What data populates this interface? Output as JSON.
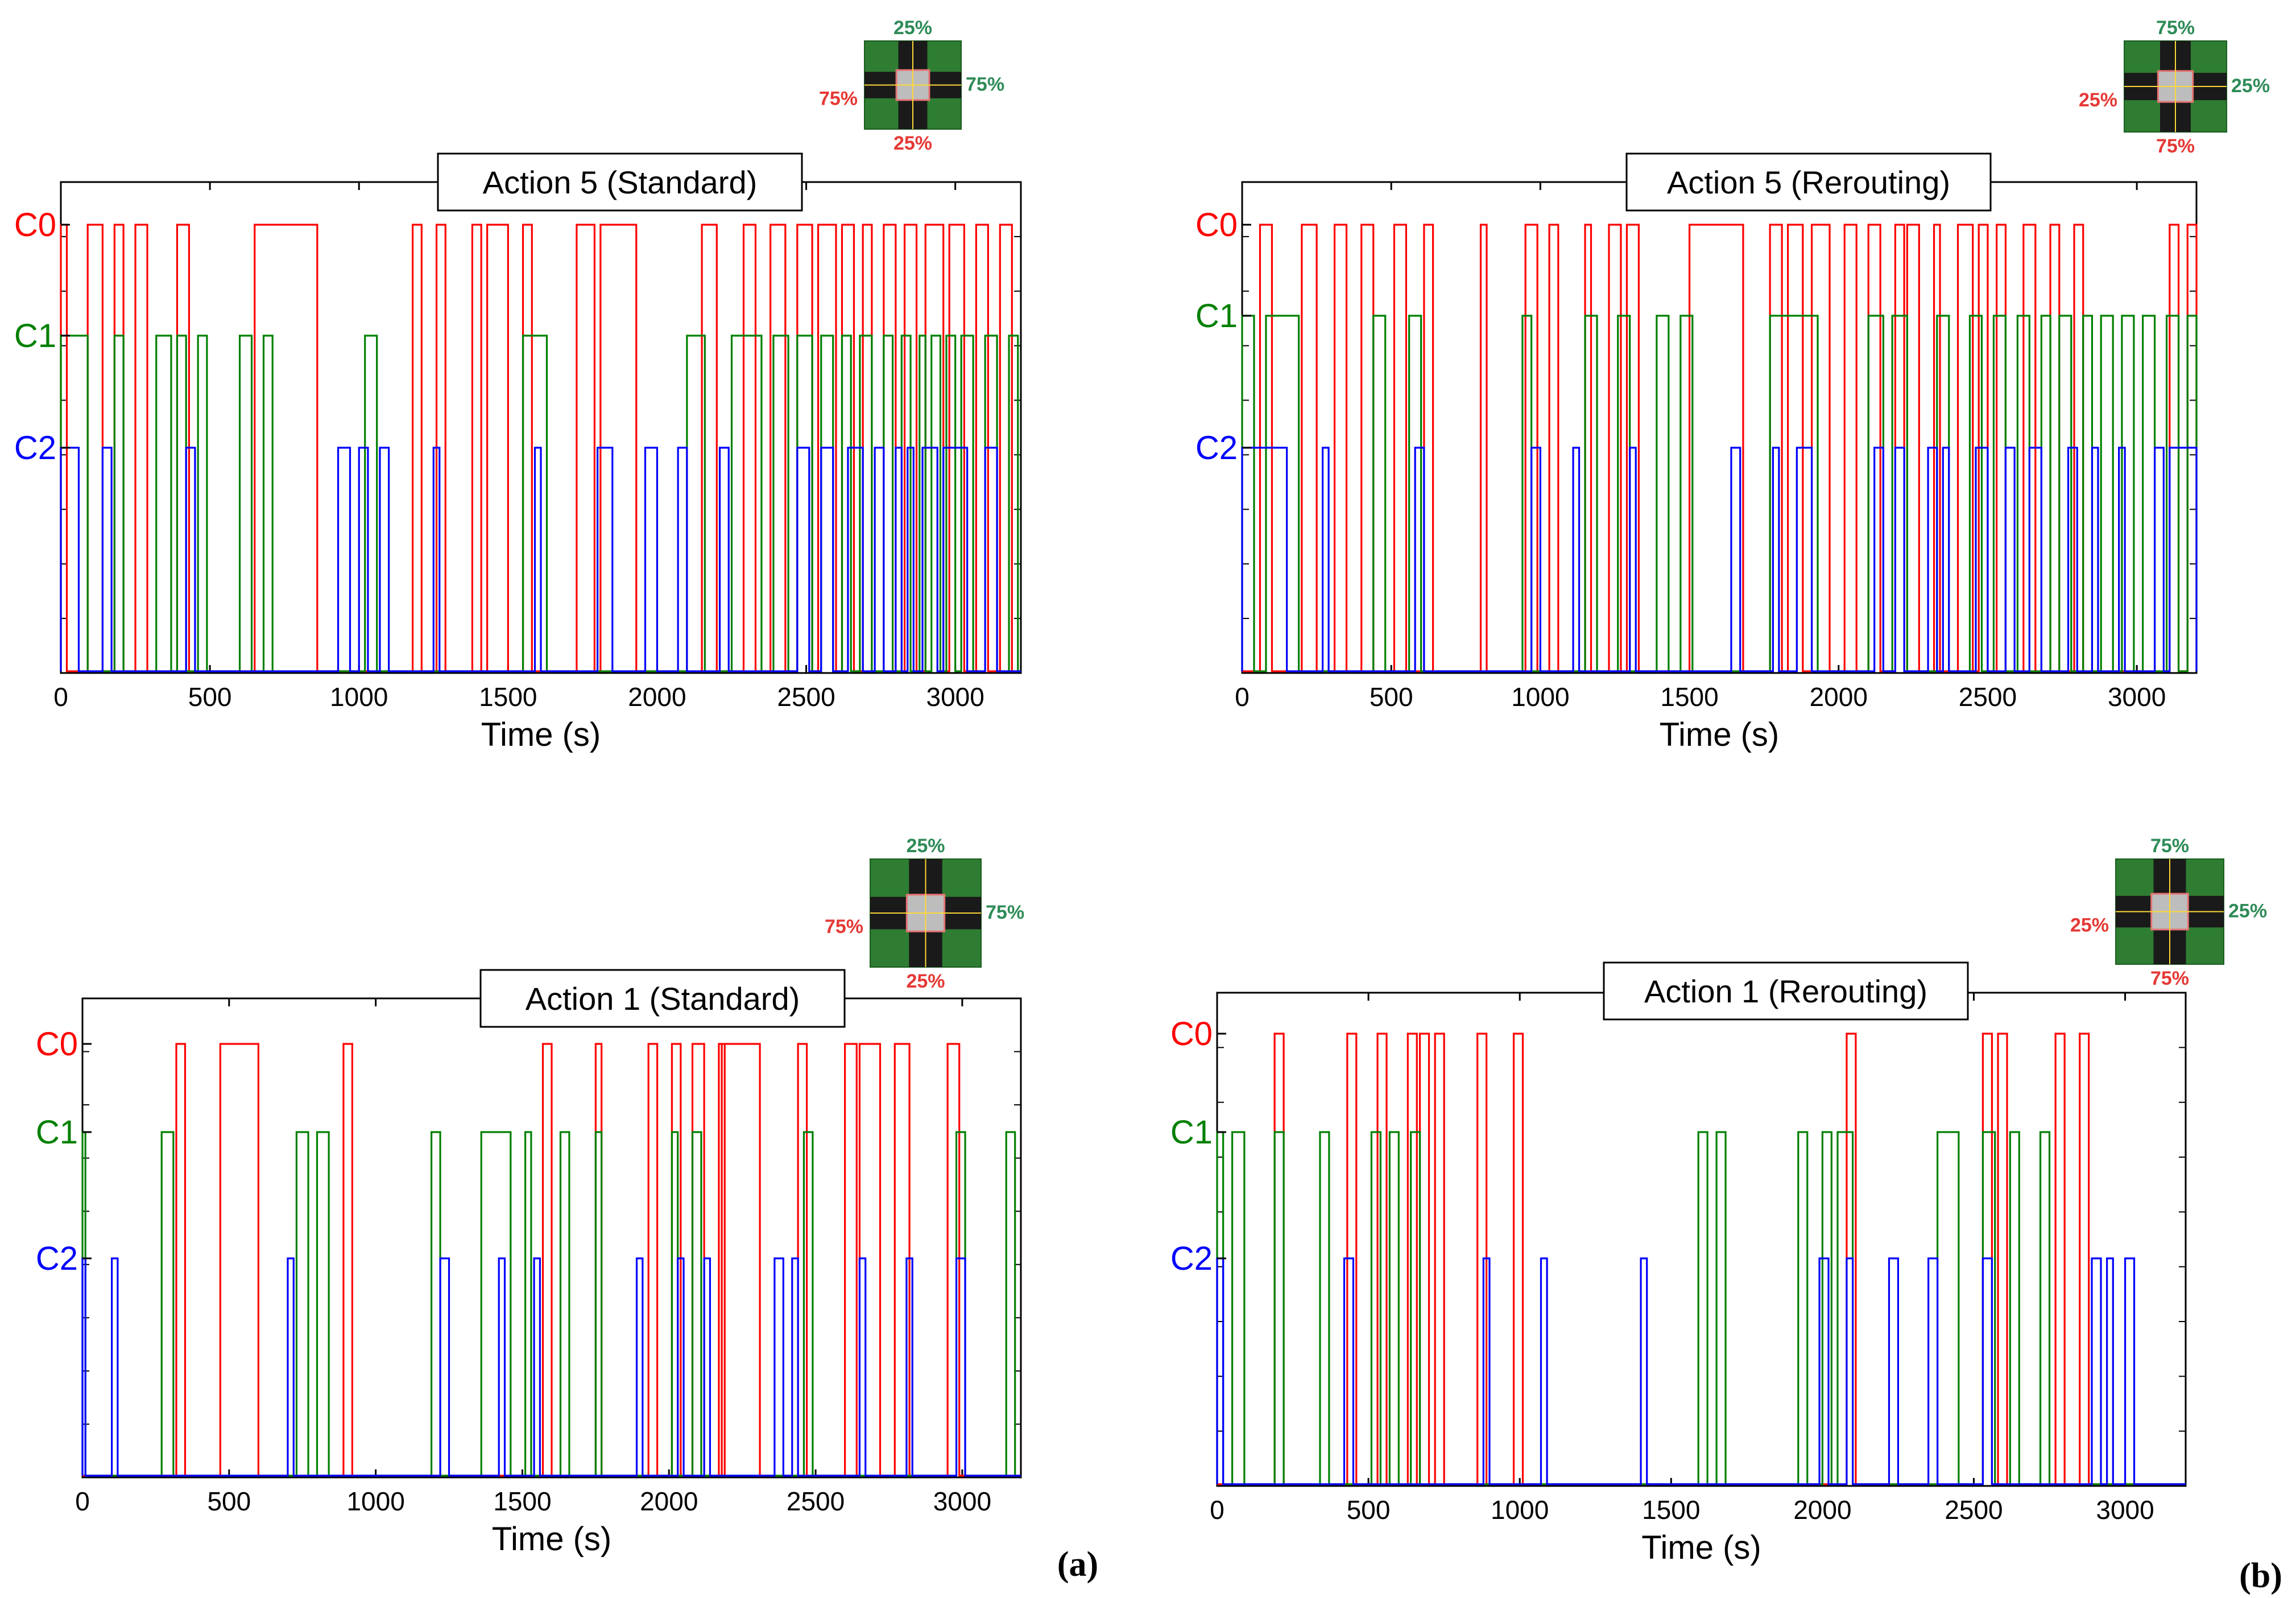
{
  "figure": {
    "panel_letters": [
      "(a)",
      "(b)"
    ]
  },
  "colors": {
    "C0": "#ff0000",
    "C1": "#008000",
    "C2": "#0000ff",
    "axis": "#000000"
  },
  "chart_data": [
    {
      "type": "line",
      "title": "Action 5 (Standard)",
      "xlabel": "Time (s)",
      "xlim": [
        0,
        3220
      ],
      "xticks": [
        0,
        500,
        1000,
        1500,
        2000,
        2500,
        3000
      ],
      "ylabels": [
        "C0",
        "C1",
        "C2"
      ],
      "inset": {
        "north": "25%",
        "east": "75%",
        "west": "75%",
        "south": "25%"
      },
      "series": [
        {
          "name": "C0",
          "color": "#ff0000",
          "intervals": [
            [
              0,
              20
            ],
            [
              90,
              140
            ],
            [
              180,
              210
            ],
            [
              250,
              290
            ],
            [
              390,
              430
            ],
            [
              650,
              860
            ],
            [
              1180,
              1210
            ],
            [
              1260,
              1290
            ],
            [
              1380,
              1410
            ],
            [
              1430,
              1500
            ],
            [
              1550,
              1580
            ],
            [
              1730,
              1790
            ],
            [
              1810,
              1930
            ],
            [
              2150,
              2200
            ],
            [
              2290,
              2330
            ],
            [
              2380,
              2430
            ],
            [
              2470,
              2520
            ],
            [
              2540,
              2600
            ],
            [
              2620,
              2660
            ],
            [
              2690,
              2720
            ],
            [
              2760,
              2800
            ],
            [
              2830,
              2870
            ],
            [
              2900,
              2960
            ],
            [
              2980,
              3030
            ],
            [
              3070,
              3110
            ],
            [
              3150,
              3190
            ]
          ]
        },
        {
          "name": "C1",
          "color": "#008000",
          "intervals": [
            [
              0,
              90
            ],
            [
              180,
              210
            ],
            [
              320,
              370
            ],
            [
              390,
              420
            ],
            [
              460,
              490
            ],
            [
              600,
              640
            ],
            [
              680,
              710
            ],
            [
              1020,
              1060
            ],
            [
              1550,
              1630
            ],
            [
              2100,
              2160
            ],
            [
              2250,
              2350
            ],
            [
              2390,
              2440
            ],
            [
              2470,
              2520
            ],
            [
              2550,
              2590
            ],
            [
              2620,
              2650
            ],
            [
              2680,
              2720
            ],
            [
              2760,
              2790
            ],
            [
              2820,
              2850
            ],
            [
              2880,
              2900
            ],
            [
              2920,
              2950
            ],
            [
              2970,
              3000
            ],
            [
              3020,
              3060
            ],
            [
              3100,
              3140
            ],
            [
              3180,
              3210
            ]
          ]
        },
        {
          "name": "C2",
          "color": "#0000ff",
          "intervals": [
            [
              0,
              60
            ],
            [
              140,
              170
            ],
            [
              420,
              450
            ],
            [
              930,
              970
            ],
            [
              1000,
              1030
            ],
            [
              1070,
              1100
            ],
            [
              1250,
              1270
            ],
            [
              1590,
              1610
            ],
            [
              1800,
              1850
            ],
            [
              1960,
              2000
            ],
            [
              2070,
              2100
            ],
            [
              2210,
              2240
            ],
            [
              2470,
              2510
            ],
            [
              2550,
              2590
            ],
            [
              2640,
              2690
            ],
            [
              2730,
              2760
            ],
            [
              2800,
              2820
            ],
            [
              2840,
              2860
            ],
            [
              2890,
              2940
            ],
            [
              2960,
              3040
            ],
            [
              3100,
              3140
            ]
          ]
        }
      ]
    },
    {
      "type": "line",
      "title": "Action 5 (Rerouting)",
      "xlabel": "Time (s)",
      "xlim": [
        0,
        3200
      ],
      "xticks": [
        0,
        500,
        1000,
        1500,
        2000,
        2500,
        3000
      ],
      "ylabels": [
        "C0",
        "C1",
        "C2"
      ],
      "inset": {
        "north": "75%",
        "east": "25%",
        "west": "25%",
        "south": "75%"
      },
      "series": [
        {
          "name": "C0",
          "color": "#ff0000",
          "intervals": [
            [
              60,
              100
            ],
            [
              200,
              250
            ],
            [
              310,
              350
            ],
            [
              400,
              440
            ],
            [
              510,
              550
            ],
            [
              610,
              640
            ],
            [
              800,
              820
            ],
            [
              950,
              990
            ],
            [
              1030,
              1060
            ],
            [
              1150,
              1170
            ],
            [
              1230,
              1270
            ],
            [
              1290,
              1330
            ],
            [
              1500,
              1680
            ],
            [
              1770,
              1810
            ],
            [
              1830,
              1880
            ],
            [
              1910,
              1970
            ],
            [
              2020,
              2060
            ],
            [
              2100,
              2140
            ],
            [
              2190,
              2220
            ],
            [
              2230,
              2270
            ],
            [
              2320,
              2340
            ],
            [
              2400,
              2450
            ],
            [
              2470,
              2500
            ],
            [
              2530,
              2560
            ],
            [
              2620,
              2660
            ],
            [
              2710,
              2740
            ],
            [
              2790,
              2820
            ],
            [
              3110,
              3140
            ],
            [
              3170,
              3200
            ]
          ]
        },
        {
          "name": "C1",
          "color": "#008000",
          "intervals": [
            [
              0,
              40
            ],
            [
              80,
              190
            ],
            [
              440,
              480
            ],
            [
              560,
              600
            ],
            [
              940,
              970
            ],
            [
              1150,
              1190
            ],
            [
              1260,
              1300
            ],
            [
              1390,
              1430
            ],
            [
              1470,
              1510
            ],
            [
              1770,
              1930
            ],
            [
              2100,
              2150
            ],
            [
              2180,
              2230
            ],
            [
              2330,
              2370
            ],
            [
              2440,
              2480
            ],
            [
              2520,
              2560
            ],
            [
              2600,
              2640
            ],
            [
              2680,
              2710
            ],
            [
              2740,
              2780
            ],
            [
              2820,
              2850
            ],
            [
              2880,
              2920
            ],
            [
              2950,
              2990
            ],
            [
              3020,
              3060
            ],
            [
              3100,
              3140
            ],
            [
              3170,
              3200
            ]
          ]
        },
        {
          "name": "C2",
          "color": "#0000ff",
          "intervals": [
            [
              0,
              150
            ],
            [
              270,
              290
            ],
            [
              580,
              610
            ],
            [
              970,
              1000
            ],
            [
              1110,
              1130
            ],
            [
              1300,
              1320
            ],
            [
              1640,
              1670
            ],
            [
              1780,
              1800
            ],
            [
              1860,
              1910
            ],
            [
              2120,
              2150
            ],
            [
              2190,
              2220
            ],
            [
              2300,
              2330
            ],
            [
              2350,
              2370
            ],
            [
              2460,
              2500
            ],
            [
              2560,
              2590
            ],
            [
              2640,
              2680
            ],
            [
              2770,
              2800
            ],
            [
              2850,
              2870
            ],
            [
              2940,
              2960
            ],
            [
              3060,
              3090
            ],
            [
              3110,
              3200
            ]
          ]
        }
      ]
    },
    {
      "type": "line",
      "title": "Action 1 (Standard)",
      "xlabel": "Time (s)",
      "xlim": [
        0,
        3200
      ],
      "xticks": [
        0,
        500,
        1000,
        1500,
        2000,
        2500,
        3000
      ],
      "ylabels": [
        "C0",
        "C1",
        "C2"
      ],
      "inset": {
        "north": "25%",
        "east": "75%",
        "west": "75%",
        "south": "25%"
      },
      "series": [
        {
          "name": "C0",
          "color": "#ff0000",
          "intervals": [
            [
              320,
              350
            ],
            [
              470,
              600
            ],
            [
              890,
              920
            ],
            [
              1570,
              1600
            ],
            [
              1750,
              1770
            ],
            [
              1930,
              1960
            ],
            [
              2010,
              2040
            ],
            [
              2080,
              2120
            ],
            [
              2170,
              2190
            ],
            [
              2180,
              2310
            ],
            [
              2440,
              2470
            ],
            [
              2600,
              2640
            ],
            [
              2650,
              2720
            ],
            [
              2770,
              2820
            ],
            [
              2950,
              2990
            ]
          ]
        },
        {
          "name": "C1",
          "color": "#008000",
          "intervals": [
            [
              0,
              10
            ],
            [
              270,
              310
            ],
            [
              730,
              770
            ],
            [
              800,
              840
            ],
            [
              1190,
              1220
            ],
            [
              1360,
              1460
            ],
            [
              1510,
              1530
            ],
            [
              1630,
              1660
            ],
            [
              1750,
              1770
            ],
            [
              2010,
              2030
            ],
            [
              2080,
              2110
            ],
            [
              2460,
              2490
            ],
            [
              2980,
              3010
            ],
            [
              3150,
              3180
            ]
          ]
        },
        {
          "name": "C2",
          "color": "#0000ff",
          "intervals": [
            [
              0,
              10
            ],
            [
              100,
              120
            ],
            [
              700,
              720
            ],
            [
              1220,
              1250
            ],
            [
              1420,
              1440
            ],
            [
              1540,
              1560
            ],
            [
              1890,
              1910
            ],
            [
              2030,
              2050
            ],
            [
              2120,
              2140
            ],
            [
              2360,
              2390
            ],
            [
              2420,
              2440
            ],
            [
              2650,
              2670
            ],
            [
              2810,
              2830
            ],
            [
              2980,
              3010
            ]
          ]
        }
      ]
    },
    {
      "type": "line",
      "title": "Action 1 (Rerouting)",
      "xlabel": "Time (s)",
      "xlim": [
        0,
        3200
      ],
      "xticks": [
        0,
        500,
        1000,
        1500,
        2000,
        2500,
        3000
      ],
      "ylabels": [
        "C0",
        "C1",
        "C2"
      ],
      "inset": {
        "north": "75%",
        "east": "25%",
        "west": "25%",
        "south": "75%"
      },
      "series": [
        {
          "name": "C0",
          "color": "#ff0000",
          "intervals": [
            [
              190,
              220
            ],
            [
              430,
              460
            ],
            [
              530,
              560
            ],
            [
              630,
              660
            ],
            [
              670,
              700
            ],
            [
              720,
              750
            ],
            [
              860,
              890
            ],
            [
              980,
              1010
            ],
            [
              2080,
              2110
            ],
            [
              2530,
              2560
            ],
            [
              2580,
              2610
            ],
            [
              2770,
              2800
            ],
            [
              2850,
              2880
            ]
          ]
        },
        {
          "name": "C1",
          "color": "#008000",
          "intervals": [
            [
              0,
              20
            ],
            [
              50,
              90
            ],
            [
              190,
              220
            ],
            [
              340,
              370
            ],
            [
              510,
              540
            ],
            [
              570,
              600
            ],
            [
              640,
              670
            ],
            [
              1590,
              1620
            ],
            [
              1650,
              1680
            ],
            [
              1920,
              1950
            ],
            [
              2000,
              2030
            ],
            [
              2050,
              2100
            ],
            [
              2380,
              2450
            ],
            [
              2530,
              2570
            ],
            [
              2620,
              2650
            ],
            [
              2720,
              2750
            ]
          ]
        },
        {
          "name": "C2",
          "color": "#0000ff",
          "intervals": [
            [
              0,
              20
            ],
            [
              420,
              450
            ],
            [
              880,
              900
            ],
            [
              1070,
              1090
            ],
            [
              1400,
              1420
            ],
            [
              1990,
              2020
            ],
            [
              2080,
              2100
            ],
            [
              2220,
              2250
            ],
            [
              2350,
              2380
            ],
            [
              2530,
              2560
            ],
            [
              2890,
              2920
            ],
            [
              2940,
              2960
            ],
            [
              3000,
              3030
            ]
          ]
        }
      ]
    }
  ]
}
